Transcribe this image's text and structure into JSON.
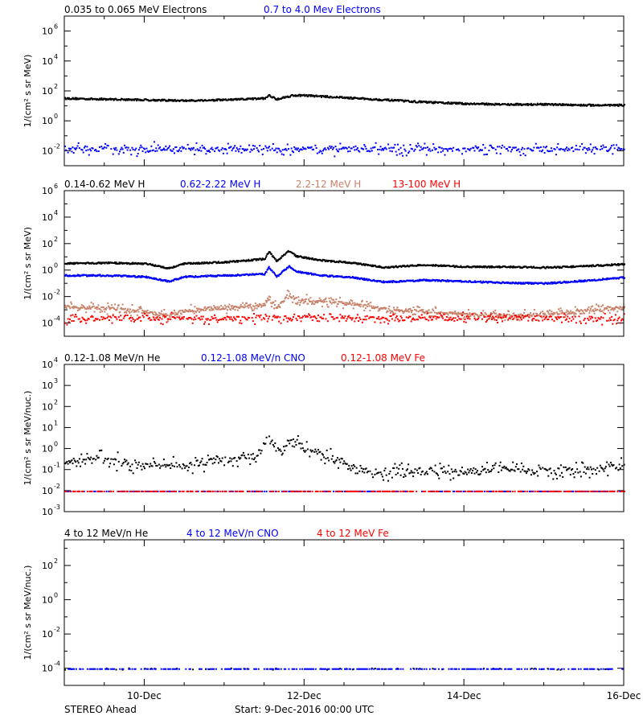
{
  "footer": {
    "left": "STEREO Ahead",
    "start": "Start:  9-Dec-2016 00:00 UTC"
  },
  "xaxis": {
    "range_days": [
      9,
      16
    ],
    "ticks": [
      {
        "day": 10,
        "label": "10-Dec"
      },
      {
        "day": 12,
        "label": "12-Dec"
      },
      {
        "day": 14,
        "label": "14-Dec"
      },
      {
        "day": 16,
        "label": "16-Dec"
      }
    ],
    "minor_tick_days": [
      9.5,
      10.5,
      11,
      11.5,
      12.5,
      13,
      13.5,
      14.5,
      15,
      15.5
    ]
  },
  "chart_data": [
    {
      "type": "scatter",
      "ylabel": "1/(cm² s sr MeV)",
      "yscale": "log",
      "ylim_exp": [
        -3,
        7
      ],
      "yticks_exp": [
        -2,
        0,
        2,
        4,
        6
      ],
      "legend": [
        {
          "text": "0.035 to 0.065 MeV Electrons",
          "color": "#000000"
        },
        {
          "text": "0.7 to 4.0 Mev Electrons",
          "color": "#0000ff"
        }
      ],
      "series": [
        {
          "name": "0.035 to 0.065 MeV Electrons",
          "color": "#000000",
          "style": "dense",
          "points": [
            [
              9.0,
              1.55
            ],
            [
              9.5,
              1.5
            ],
            [
              10.0,
              1.45
            ],
            [
              10.5,
              1.4
            ],
            [
              11.0,
              1.45
            ],
            [
              11.5,
              1.55
            ],
            [
              11.55,
              1.75
            ],
            [
              11.65,
              1.5
            ],
            [
              11.85,
              1.75
            ],
            [
              12.0,
              1.75
            ],
            [
              12.5,
              1.6
            ],
            [
              13.0,
              1.45
            ],
            [
              13.5,
              1.3
            ],
            [
              14.0,
              1.2
            ],
            [
              14.5,
              1.15
            ],
            [
              15.0,
              1.15
            ],
            [
              15.5,
              1.1
            ],
            [
              16.0,
              1.1
            ]
          ]
        },
        {
          "name": "0.7 to 4.0 Mev Electrons",
          "color": "#0000ff",
          "style": "scatter-noisy",
          "points": [
            [
              9.0,
              -1.85
            ],
            [
              12.5,
              -1.85
            ],
            [
              16.0,
              -1.85
            ]
          ]
        }
      ]
    },
    {
      "type": "scatter",
      "ylabel": "1/(cm² s sr MeV)",
      "yscale": "log",
      "ylim_exp": [
        -5,
        6
      ],
      "yticks_exp": [
        -4,
        -2,
        0,
        2,
        4,
        6
      ],
      "legend": [
        {
          "text": "0.14-0.62 MeV H",
          "color": "#000000"
        },
        {
          "text": "0.62-2.22 MeV H",
          "color": "#0000ff"
        },
        {
          "text": "2.2-12 MeV H",
          "color": "#c8826a"
        },
        {
          "text": "13-100 MeV H",
          "color": "#ff0000"
        }
      ],
      "series": [
        {
          "name": "0.14-0.62 MeV H",
          "color": "#000000",
          "style": "dense",
          "points": [
            [
              9.0,
              0.55
            ],
            [
              9.5,
              0.6
            ],
            [
              10.0,
              0.55
            ],
            [
              10.3,
              0.2
            ],
            [
              10.5,
              0.55
            ],
            [
              11.0,
              0.65
            ],
            [
              11.5,
              0.9
            ],
            [
              11.55,
              1.45
            ],
            [
              11.65,
              0.75
            ],
            [
              11.8,
              1.5
            ],
            [
              11.9,
              1.1
            ],
            [
              12.2,
              0.8
            ],
            [
              12.6,
              0.6
            ],
            [
              13.0,
              0.25
            ],
            [
              13.5,
              0.45
            ],
            [
              14.0,
              0.3
            ],
            [
              14.5,
              0.3
            ],
            [
              15.0,
              0.25
            ],
            [
              15.5,
              0.35
            ],
            [
              16.0,
              0.5
            ]
          ]
        },
        {
          "name": "0.62-2.22 MeV H",
          "color": "#0000ff",
          "style": "dense",
          "points": [
            [
              9.0,
              -0.35
            ],
            [
              9.5,
              -0.35
            ],
            [
              10.0,
              -0.45
            ],
            [
              10.3,
              -0.8
            ],
            [
              10.5,
              -0.45
            ],
            [
              11.0,
              -0.35
            ],
            [
              11.5,
              -0.25
            ],
            [
              11.55,
              0.3
            ],
            [
              11.65,
              -0.45
            ],
            [
              11.8,
              0.35
            ],
            [
              11.9,
              -0.05
            ],
            [
              12.2,
              -0.35
            ],
            [
              12.6,
              -0.5
            ],
            [
              13.0,
              -0.85
            ],
            [
              13.5,
              -0.7
            ],
            [
              14.0,
              -0.8
            ],
            [
              14.5,
              -0.9
            ],
            [
              15.0,
              -0.95
            ],
            [
              15.5,
              -0.75
            ],
            [
              16.0,
              -0.5
            ]
          ]
        },
        {
          "name": "2.2-12 MeV H",
          "color": "#c8826a",
          "style": "dense-noisy",
          "points": [
            [
              9.0,
              -2.7
            ],
            [
              9.5,
              -2.8
            ],
            [
              10.0,
              -3.1
            ],
            [
              10.3,
              -3.4
            ],
            [
              10.5,
              -3.0
            ],
            [
              11.0,
              -2.8
            ],
            [
              11.5,
              -2.6
            ],
            [
              11.55,
              -2.0
            ],
            [
              11.65,
              -2.8
            ],
            [
              11.8,
              -1.8
            ],
            [
              11.9,
              -2.2
            ],
            [
              12.2,
              -2.3
            ],
            [
              12.6,
              -2.5
            ],
            [
              13.0,
              -2.9
            ],
            [
              13.5,
              -3.1
            ],
            [
              14.0,
              -3.3
            ],
            [
              14.5,
              -3.4
            ],
            [
              15.0,
              -3.3
            ],
            [
              15.5,
              -3.0
            ],
            [
              16.0,
              -2.8
            ]
          ]
        },
        {
          "name": "13-100 MeV H",
          "color": "#ff0000",
          "style": "scatter-noisy",
          "points": [
            [
              9.0,
              -3.6
            ],
            [
              12.5,
              -3.55
            ],
            [
              16.0,
              -3.6
            ]
          ]
        }
      ]
    },
    {
      "type": "scatter",
      "ylabel": "1/(cm² s sr MeV/nuc.)",
      "yscale": "log",
      "ylim_exp": [
        -3,
        4
      ],
      "yticks_exp": [
        -3,
        -2,
        -1,
        0,
        1,
        2,
        3,
        4
      ],
      "legend": [
        {
          "text": "0.12-1.08 MeV/n He",
          "color": "#000000"
        },
        {
          "text": "0.12-1.08 MeV/n CNO",
          "color": "#0000ff"
        },
        {
          "text": "0.12-1.08 MeV Fe",
          "color": "#ff0000"
        }
      ],
      "series": [
        {
          "name": "0.12-1.08 MeV/n He",
          "color": "#000000",
          "style": "scatter-noisy",
          "points": [
            [
              9.0,
              -0.6
            ],
            [
              9.5,
              -0.5
            ],
            [
              10.0,
              -0.8
            ],
            [
              10.5,
              -0.75
            ],
            [
              11.0,
              -0.5
            ],
            [
              11.4,
              -0.3
            ],
            [
              11.55,
              0.6
            ],
            [
              11.7,
              -0.2
            ],
            [
              11.85,
              0.6
            ],
            [
              12.0,
              0.0
            ],
            [
              12.3,
              -0.4
            ],
            [
              12.5,
              -0.6
            ],
            [
              12.6,
              -0.95
            ],
            [
              13.0,
              -1.1
            ],
            [
              13.5,
              -1.0
            ],
            [
              14.0,
              -1.1
            ],
            [
              14.5,
              -0.95
            ],
            [
              15.0,
              -1.05
            ],
            [
              15.5,
              -0.95
            ],
            [
              16.0,
              -0.8
            ]
          ]
        },
        {
          "name": "0.12-1.08 MeV/n CNO",
          "color": "#0000ff",
          "style": "baseline",
          "points": [
            [
              9.0,
              -2.0
            ],
            [
              16.0,
              -2.0
            ]
          ]
        },
        {
          "name": "0.12-1.08 MeV Fe",
          "color": "#ff0000",
          "style": "baseline",
          "points": [
            [
              9.0,
              -2.0
            ],
            [
              16.0,
              -2.0
            ]
          ]
        }
      ]
    },
    {
      "type": "scatter",
      "ylabel": "1/(cm² s sr MeV/nuc.)",
      "yscale": "log",
      "ylim_exp": [
        -5,
        3.5
      ],
      "yticks_exp": [
        -4,
        -2,
        0,
        2
      ],
      "legend": [
        {
          "text": "4 to 12 MeV/n He",
          "color": "#000000"
        },
        {
          "text": "4 to 12 MeV/n CNO",
          "color": "#0000ff"
        },
        {
          "text": "4 to 12 MeV Fe",
          "color": "#ff0000"
        }
      ],
      "series": [
        {
          "name": "4 to 12 MeV/n He",
          "color": "#000000",
          "style": "sparse",
          "points": [
            [
              9.0,
              -4.0
            ],
            [
              16.0,
              -4.0
            ]
          ]
        },
        {
          "name": "4 to 12 MeV/n CNO",
          "color": "#0000ff",
          "style": "baseline",
          "points": [
            [
              9.0,
              -4.0
            ],
            [
              16.0,
              -4.0
            ]
          ]
        },
        {
          "name": "4 to 12 MeV Fe",
          "color": "#ff0000",
          "style": "none",
          "points": [
            [
              9.0,
              -4.0
            ],
            [
              16.0,
              -4.0
            ]
          ]
        }
      ]
    }
  ]
}
